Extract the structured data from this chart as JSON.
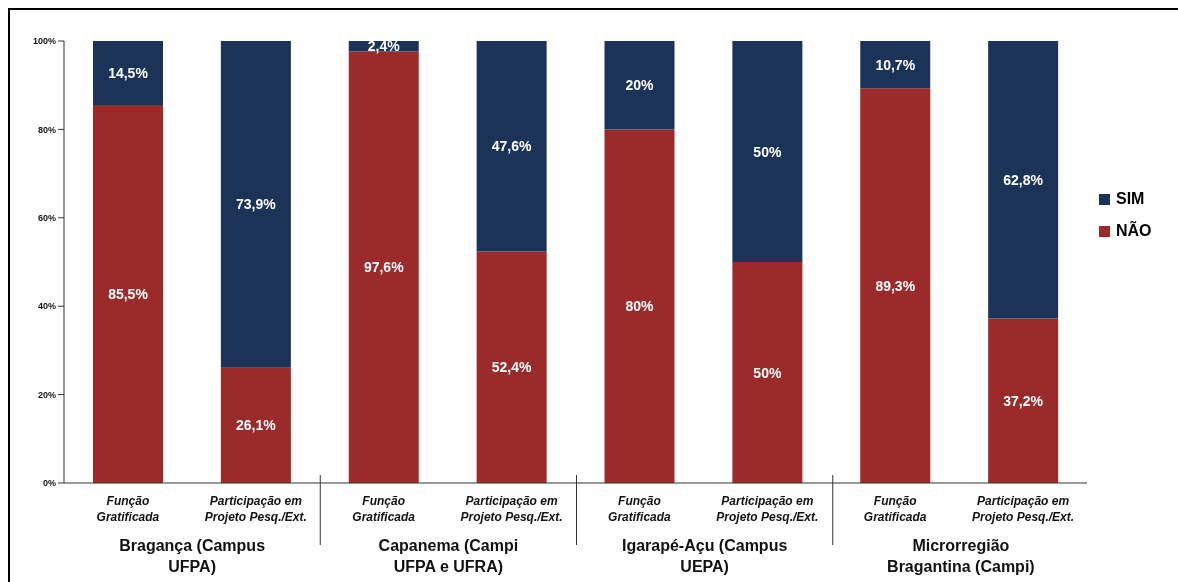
{
  "chart_data": {
    "type": "bar",
    "stacked": true,
    "categories": [
      "Função Gratificada",
      "Participação em Projeto Pesq./Ext.",
      "Função Gratificada",
      "Participação em Projeto Pesq./Ext.",
      "Função Gratificada",
      "Participação em Projeto Pesq./Ext.",
      "Função Gratificada",
      "Participação em Projeto Pesq./Ext."
    ],
    "series": [
      {
        "name": "NÃO",
        "color": "#9b2a2a",
        "values": [
          85.5,
          26.1,
          97.6,
          52.4,
          80,
          50,
          89.3,
          37.2
        ],
        "value_labels": [
          "85,5%",
          "26,1%",
          "97,6%",
          "52,4%",
          "80%",
          "50%",
          "89,3%",
          "37,2%"
        ]
      },
      {
        "name": "SIM",
        "color": "#1c3358",
        "values": [
          14.5,
          73.9,
          2.4,
          47.6,
          20,
          50,
          10.7,
          62.8
        ],
        "value_labels": [
          "14,5%",
          "73,9%",
          "2,4%",
          "47,6%",
          "20%",
          "50%",
          "10,7%",
          "62,8%"
        ]
      }
    ],
    "ylim": [
      0,
      100
    ],
    "yticks": [
      {
        "value": 0,
        "label": "0%"
      },
      {
        "value": 20,
        "label": "20%"
      },
      {
        "value": 40,
        "label": "40%"
      },
      {
        "value": 60,
        "label": "60%"
      },
      {
        "value": 80,
        "label": "80%"
      },
      {
        "value": 100,
        "label": "100%"
      }
    ],
    "annotations": [
      "Bragança (Campus UFPA)",
      "Capanema (Campi UFPA e UFRA)",
      "Igarapé-Açu (Campus UEPA)",
      "Microrregião Bragantina (Campi)"
    ],
    "legend": "right",
    "grid": false
  }
}
